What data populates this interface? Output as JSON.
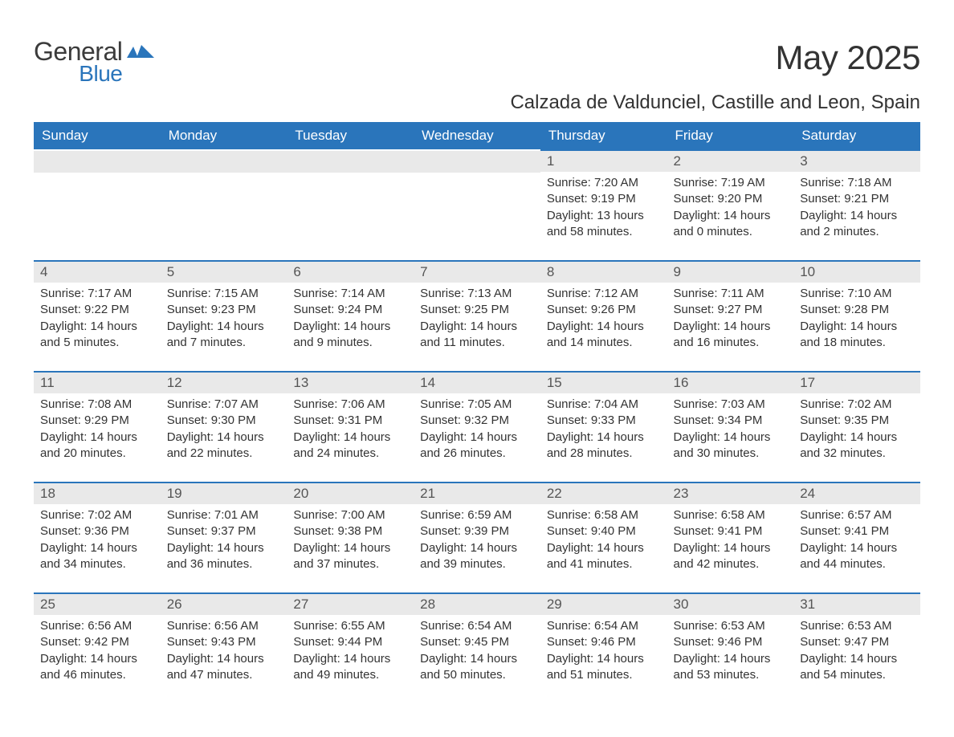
{
  "brand": {
    "general": "General",
    "blue": "Blue"
  },
  "header": {
    "title": "May 2025",
    "subtitle": "Calzada de Valdunciel, Castille and Leon, Spain"
  },
  "style": {
    "header_bg": "#2a75bb",
    "header_fg": "#ffffff",
    "daynum_bg": "#e9e9e9",
    "daynum_fg": "#555555",
    "border_color": "#2a75bb",
    "body_fg": "#333333",
    "background": "#ffffff",
    "title_fontsize": 42,
    "subtitle_fontsize": 24,
    "th_fontsize": 17,
    "cell_fontsize": 15
  },
  "weekdays": [
    "Sunday",
    "Monday",
    "Tuesday",
    "Wednesday",
    "Thursday",
    "Friday",
    "Saturday"
  ],
  "leading_blanks": 4,
  "days": [
    {
      "n": "1",
      "sunrise": "Sunrise: 7:20 AM",
      "sunset": "Sunset: 9:19 PM",
      "daylight": "Daylight: 13 hours and 58 minutes."
    },
    {
      "n": "2",
      "sunrise": "Sunrise: 7:19 AM",
      "sunset": "Sunset: 9:20 PM",
      "daylight": "Daylight: 14 hours and 0 minutes."
    },
    {
      "n": "3",
      "sunrise": "Sunrise: 7:18 AM",
      "sunset": "Sunset: 9:21 PM",
      "daylight": "Daylight: 14 hours and 2 minutes."
    },
    {
      "n": "4",
      "sunrise": "Sunrise: 7:17 AM",
      "sunset": "Sunset: 9:22 PM",
      "daylight": "Daylight: 14 hours and 5 minutes."
    },
    {
      "n": "5",
      "sunrise": "Sunrise: 7:15 AM",
      "sunset": "Sunset: 9:23 PM",
      "daylight": "Daylight: 14 hours and 7 minutes."
    },
    {
      "n": "6",
      "sunrise": "Sunrise: 7:14 AM",
      "sunset": "Sunset: 9:24 PM",
      "daylight": "Daylight: 14 hours and 9 minutes."
    },
    {
      "n": "7",
      "sunrise": "Sunrise: 7:13 AM",
      "sunset": "Sunset: 9:25 PM",
      "daylight": "Daylight: 14 hours and 11 minutes."
    },
    {
      "n": "8",
      "sunrise": "Sunrise: 7:12 AM",
      "sunset": "Sunset: 9:26 PM",
      "daylight": "Daylight: 14 hours and 14 minutes."
    },
    {
      "n": "9",
      "sunrise": "Sunrise: 7:11 AM",
      "sunset": "Sunset: 9:27 PM",
      "daylight": "Daylight: 14 hours and 16 minutes."
    },
    {
      "n": "10",
      "sunrise": "Sunrise: 7:10 AM",
      "sunset": "Sunset: 9:28 PM",
      "daylight": "Daylight: 14 hours and 18 minutes."
    },
    {
      "n": "11",
      "sunrise": "Sunrise: 7:08 AM",
      "sunset": "Sunset: 9:29 PM",
      "daylight": "Daylight: 14 hours and 20 minutes."
    },
    {
      "n": "12",
      "sunrise": "Sunrise: 7:07 AM",
      "sunset": "Sunset: 9:30 PM",
      "daylight": "Daylight: 14 hours and 22 minutes."
    },
    {
      "n": "13",
      "sunrise": "Sunrise: 7:06 AM",
      "sunset": "Sunset: 9:31 PM",
      "daylight": "Daylight: 14 hours and 24 minutes."
    },
    {
      "n": "14",
      "sunrise": "Sunrise: 7:05 AM",
      "sunset": "Sunset: 9:32 PM",
      "daylight": "Daylight: 14 hours and 26 minutes."
    },
    {
      "n": "15",
      "sunrise": "Sunrise: 7:04 AM",
      "sunset": "Sunset: 9:33 PM",
      "daylight": "Daylight: 14 hours and 28 minutes."
    },
    {
      "n": "16",
      "sunrise": "Sunrise: 7:03 AM",
      "sunset": "Sunset: 9:34 PM",
      "daylight": "Daylight: 14 hours and 30 minutes."
    },
    {
      "n": "17",
      "sunrise": "Sunrise: 7:02 AM",
      "sunset": "Sunset: 9:35 PM",
      "daylight": "Daylight: 14 hours and 32 minutes."
    },
    {
      "n": "18",
      "sunrise": "Sunrise: 7:02 AM",
      "sunset": "Sunset: 9:36 PM",
      "daylight": "Daylight: 14 hours and 34 minutes."
    },
    {
      "n": "19",
      "sunrise": "Sunrise: 7:01 AM",
      "sunset": "Sunset: 9:37 PM",
      "daylight": "Daylight: 14 hours and 36 minutes."
    },
    {
      "n": "20",
      "sunrise": "Sunrise: 7:00 AM",
      "sunset": "Sunset: 9:38 PM",
      "daylight": "Daylight: 14 hours and 37 minutes."
    },
    {
      "n": "21",
      "sunrise": "Sunrise: 6:59 AM",
      "sunset": "Sunset: 9:39 PM",
      "daylight": "Daylight: 14 hours and 39 minutes."
    },
    {
      "n": "22",
      "sunrise": "Sunrise: 6:58 AM",
      "sunset": "Sunset: 9:40 PM",
      "daylight": "Daylight: 14 hours and 41 minutes."
    },
    {
      "n": "23",
      "sunrise": "Sunrise: 6:58 AM",
      "sunset": "Sunset: 9:41 PM",
      "daylight": "Daylight: 14 hours and 42 minutes."
    },
    {
      "n": "24",
      "sunrise": "Sunrise: 6:57 AM",
      "sunset": "Sunset: 9:41 PM",
      "daylight": "Daylight: 14 hours and 44 minutes."
    },
    {
      "n": "25",
      "sunrise": "Sunrise: 6:56 AM",
      "sunset": "Sunset: 9:42 PM",
      "daylight": "Daylight: 14 hours and 46 minutes."
    },
    {
      "n": "26",
      "sunrise": "Sunrise: 6:56 AM",
      "sunset": "Sunset: 9:43 PM",
      "daylight": "Daylight: 14 hours and 47 minutes."
    },
    {
      "n": "27",
      "sunrise": "Sunrise: 6:55 AM",
      "sunset": "Sunset: 9:44 PM",
      "daylight": "Daylight: 14 hours and 49 minutes."
    },
    {
      "n": "28",
      "sunrise": "Sunrise: 6:54 AM",
      "sunset": "Sunset: 9:45 PM",
      "daylight": "Daylight: 14 hours and 50 minutes."
    },
    {
      "n": "29",
      "sunrise": "Sunrise: 6:54 AM",
      "sunset": "Sunset: 9:46 PM",
      "daylight": "Daylight: 14 hours and 51 minutes."
    },
    {
      "n": "30",
      "sunrise": "Sunrise: 6:53 AM",
      "sunset": "Sunset: 9:46 PM",
      "daylight": "Daylight: 14 hours and 53 minutes."
    },
    {
      "n": "31",
      "sunrise": "Sunrise: 6:53 AM",
      "sunset": "Sunset: 9:47 PM",
      "daylight": "Daylight: 14 hours and 54 minutes."
    }
  ]
}
